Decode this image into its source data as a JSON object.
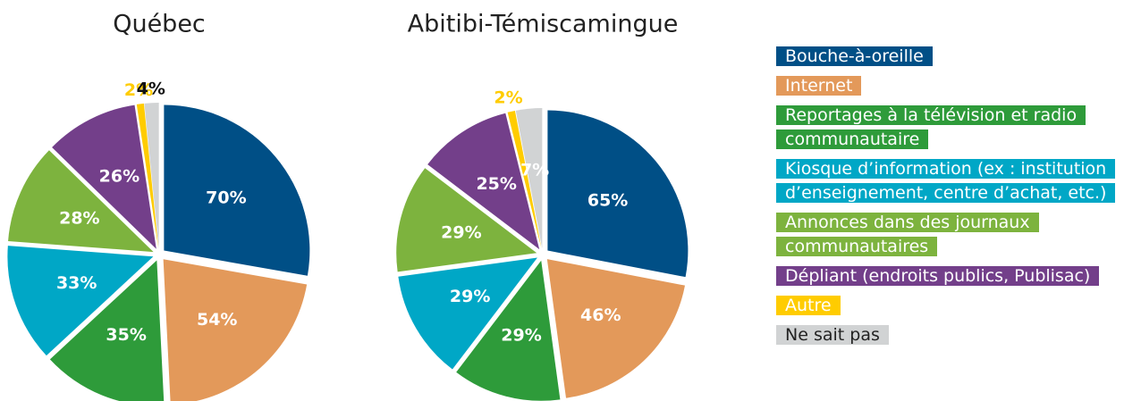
{
  "chart_data": [
    {
      "type": "pie",
      "title": "Québec",
      "categories": [
        "Bouche-à-oreille",
        "Internet",
        "Reportages à la télévision et radio communautaire",
        "Kiosque d’information (ex : institution d’enseignement, centre d’achat, etc.)",
        "Annonces dans des journaux communautaires",
        "Dépliant (endroits publics, Publisac)",
        "Autre",
        "Ne sait pas"
      ],
      "colors": [
        "#004f86",
        "#e3995a",
        "#2e9b3a",
        "#00a7c6",
        "#7db33e",
        "#733f8a",
        "#ffcc00",
        "#d1d3d4"
      ],
      "values": [
        70,
        54,
        35,
        33,
        28,
        26,
        2,
        4
      ],
      "value_labels": [
        "70%",
        "54%",
        "35%",
        "33%",
        "28%",
        "26%",
        "2%",
        "4%"
      ]
    },
    {
      "type": "pie",
      "title": "Abitibi-Témiscamingue",
      "values": [
        65,
        46,
        29,
        29,
        29,
        25,
        2,
        7
      ],
      "value_labels": [
        "65%",
        "46%",
        "29%",
        "29%",
        "29%",
        "25%",
        "2%",
        "7%"
      ]
    }
  ]
}
